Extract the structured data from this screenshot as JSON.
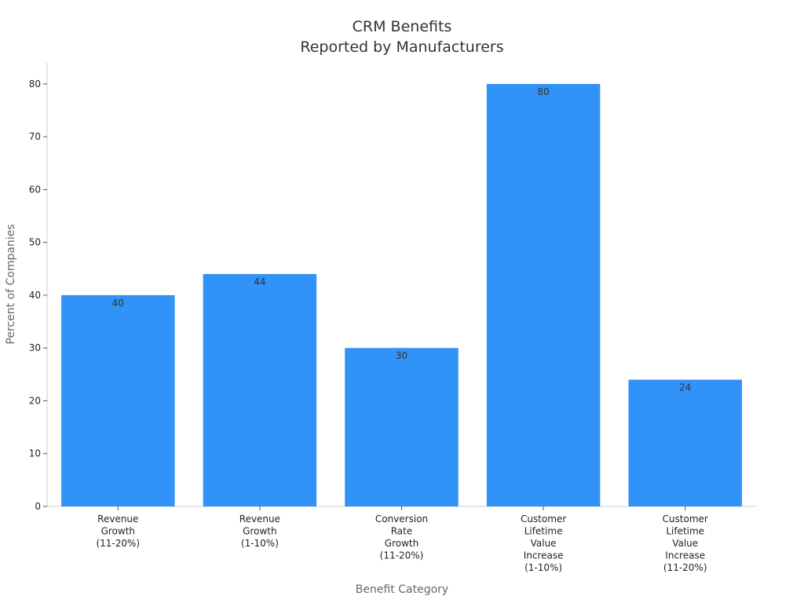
{
  "chart_data": {
    "type": "bar",
    "title": "CRM Benefits",
    "subtitle": "Reported by Manufacturers",
    "x_label": "Benefit Category",
    "y_label": "Percent of Companies",
    "categories": [
      "Revenue Growth (11-20%)",
      "Revenue Growth (1-10%)",
      "Conversion Rate Growth (11-20%)",
      "Customer Lifetime Value Increase (1-10%)",
      "Customer Lifetime Value Increase (11-20%)"
    ],
    "values": [
      40,
      44,
      30,
      80,
      24
    ],
    "color": "#3192f7",
    "ylim": [
      0,
      84
    ],
    "yticks": [
      0,
      10,
      20,
      30,
      40,
      50,
      60,
      70,
      80
    ],
    "grid": false,
    "data_labels": true
  }
}
